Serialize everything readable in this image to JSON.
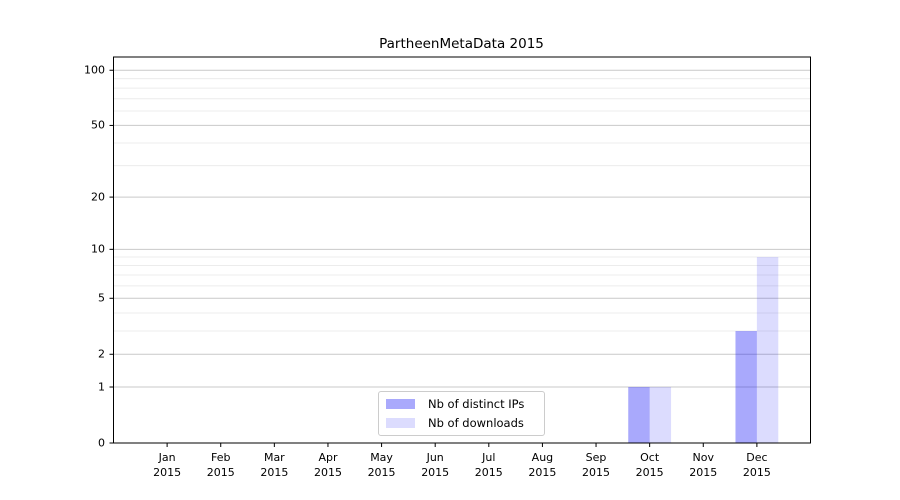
{
  "chart_data": {
    "type": "bar",
    "title": "PartheenMetaData 2015",
    "categories": [
      "Jan",
      "Feb",
      "Mar",
      "Apr",
      "May",
      "Jun",
      "Jul",
      "Aug",
      "Sep",
      "Oct",
      "Nov",
      "Dec"
    ],
    "x_sublabel_year": "2015",
    "series": [
      {
        "name": "Nb of distinct IPs",
        "color": "rgba(10,10,245,0.35)",
        "values": [
          0,
          0,
          0,
          0,
          0,
          0,
          0,
          0,
          0,
          1,
          0,
          3
        ]
      },
      {
        "name": "Nb of downloads",
        "color": "rgba(10,10,245,0.14)",
        "values": [
          0,
          0,
          0,
          0,
          0,
          0,
          0,
          0,
          0,
          1,
          0,
          9
        ]
      }
    ],
    "xlabel": "",
    "ylabel": "",
    "y_axis": {
      "scale": "log1p",
      "major_ticks": [
        0,
        1,
        2,
        5,
        10,
        20,
        50,
        100
      ],
      "minor_gridlines": [
        3,
        4,
        6,
        7,
        8,
        9,
        30,
        40,
        60,
        70,
        80,
        90
      ],
      "ylim": [
        0,
        118
      ]
    },
    "grid": "on",
    "legend_position": "lower center"
  },
  "colors": {
    "major_grid": "#c9c9c9",
    "minor_grid": "#ececec",
    "spine": "#000000",
    "background": "#ffffff"
  }
}
